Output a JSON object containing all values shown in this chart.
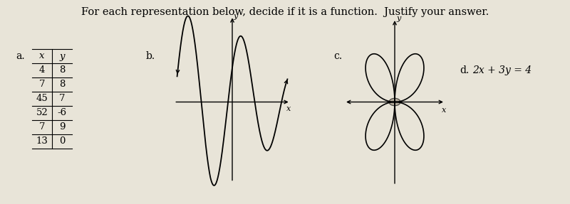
{
  "title": "For each representation below, decide if it is a function.  Justify your answer.",
  "title_fontsize": 10.5,
  "bg_color": "#e8e4d8",
  "table": {
    "label": "a.",
    "x_vals": [
      "x",
      "4",
      "7",
      "45",
      "52",
      "7",
      "13"
    ],
    "y_vals": [
      "y",
      "8",
      "8",
      "7",
      "-6",
      "9",
      "0"
    ]
  },
  "b_label": "b.",
  "c_label": "c.",
  "d_label": "d.",
  "d_text": "2x + 3y = 4"
}
